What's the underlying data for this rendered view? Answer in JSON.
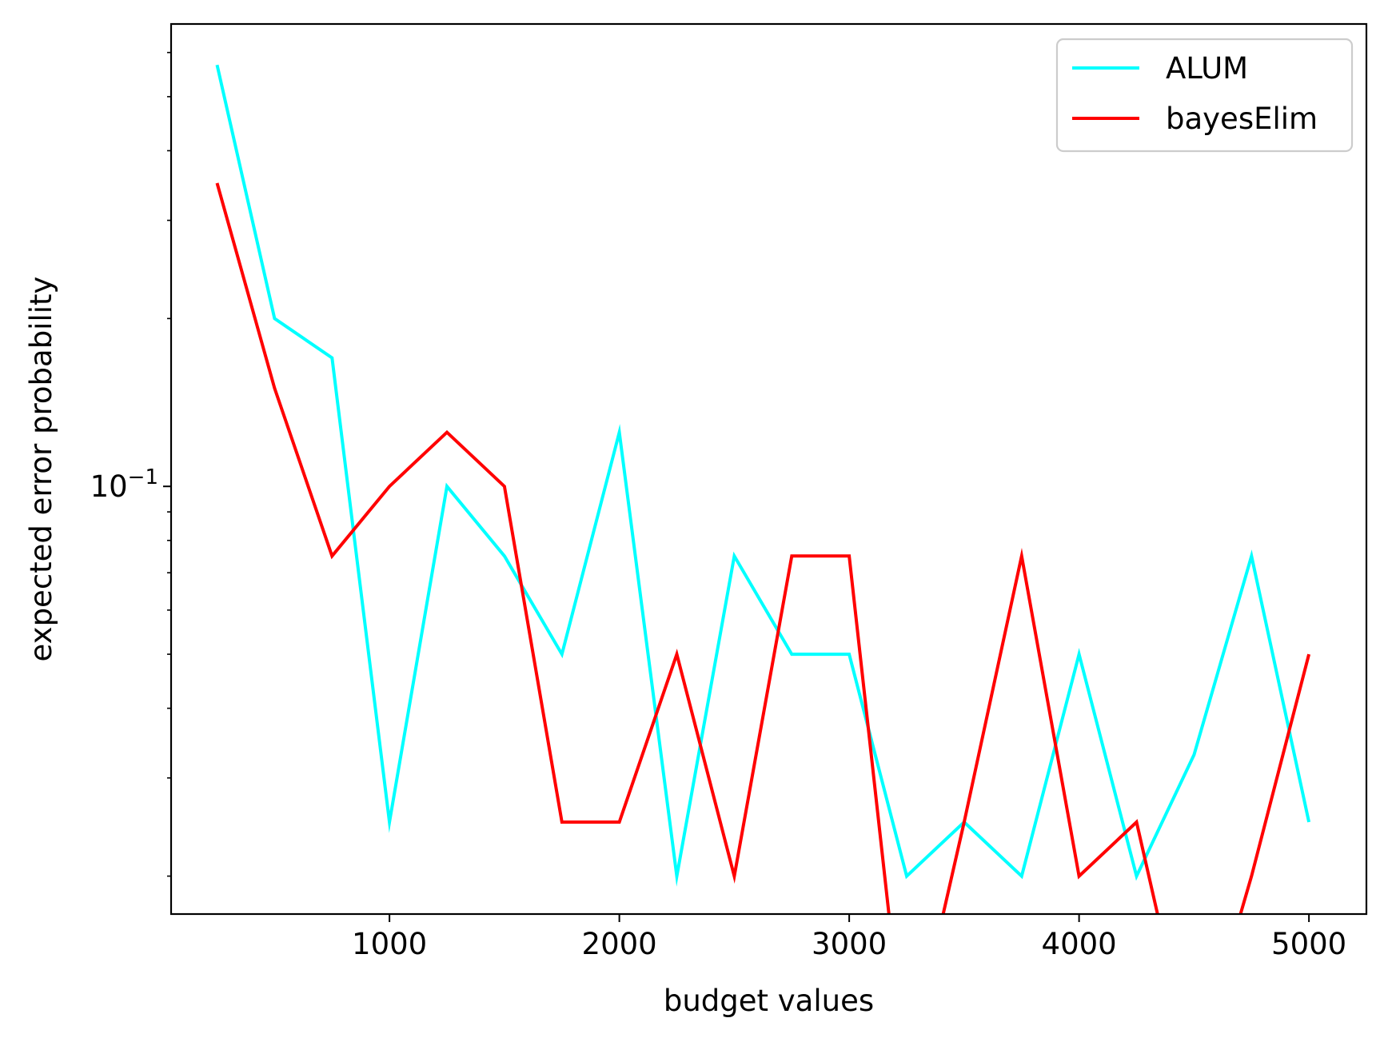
{
  "chart_data": {
    "type": "line",
    "title": "",
    "xlabel": "budget values",
    "ylabel": "expected error probability",
    "y_scale": "log",
    "xlim": [
      50,
      5250
    ],
    "ylim": [
      0.0171,
      0.675
    ],
    "x_ticks": [
      1000,
      2000,
      3000,
      4000,
      5000
    ],
    "x_tick_labels": [
      "1000",
      "2000",
      "3000",
      "4000",
      "5000"
    ],
    "y_major_ticks": [
      0.1
    ],
    "y_major_tick_base": "10",
    "y_major_tick_exponent": "−1",
    "y_minor_ticks": [
      0.02,
      0.03,
      0.04,
      0.05,
      0.06,
      0.07,
      0.08,
      0.09,
      0.2,
      0.3,
      0.4,
      0.5,
      0.6
    ],
    "grid": false,
    "legend_position": "top-right",
    "x": [
      250,
      500,
      750,
      1000,
      1250,
      1500,
      1750,
      2000,
      2250,
      2500,
      2750,
      3000,
      3250,
      3500,
      3750,
      4000,
      4250,
      4500,
      4750,
      5000
    ],
    "series": [
      {
        "name": "ALUM",
        "color": "#00ffff",
        "values": [
          0.57,
          0.2,
          0.17,
          0.025,
          0.1,
          0.075,
          0.05,
          0.125,
          0.02,
          0.075,
          0.05,
          0.05,
          0.02,
          0.025,
          0.02,
          0.05,
          0.02,
          0.033,
          0.075,
          0.025
        ]
      },
      {
        "name": "bayesElim",
        "color": "#ff0000",
        "values": [
          0.35,
          0.15,
          0.075,
          0.1,
          0.125,
          0.1,
          0.025,
          0.025,
          0.05,
          0.02,
          0.075,
          0.075,
          0,
          0.025,
          0.075,
          0.02,
          0.025,
          0,
          0.02,
          0.05
        ]
      }
    ]
  }
}
